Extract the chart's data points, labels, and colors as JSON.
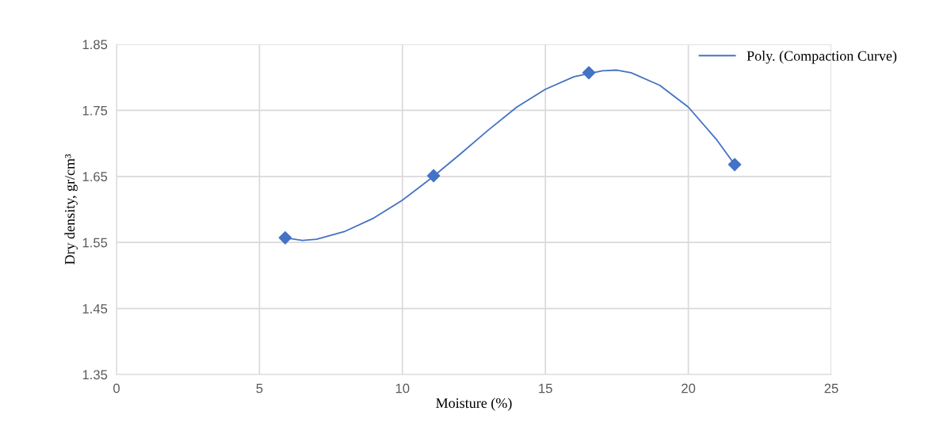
{
  "chart_data": {
    "type": "line",
    "xlabel": "Moisture (%)",
    "ylabel": "Dry density, gr/cm³",
    "xlim": [
      0,
      25
    ],
    "xticks": [
      0,
      5,
      10,
      15,
      20,
      25
    ],
    "ylim": [
      1.35,
      1.85
    ],
    "yticks": [
      1.35,
      1.45,
      1.55,
      1.65,
      1.75,
      1.85
    ],
    "grid": true,
    "legend": "top right",
    "series": [
      {
        "type": "scatter",
        "marker": "diamond",
        "color": "#4472c4",
        "x": [
          5.9,
          11.09,
          16.52,
          21.62
        ],
        "values": [
          1.557,
          1.651,
          1.807,
          1.668
        ]
      },
      {
        "name": "Poly. (Compaction Curve)",
        "color": "#4472c4",
        "x": [
          5.9,
          6.5,
          7,
          8,
          9,
          10,
          11,
          12,
          13,
          14,
          15,
          16,
          17,
          17.5,
          18,
          19,
          20,
          21,
          21.62
        ],
        "values": [
          1.557,
          1.553,
          1.555,
          1.567,
          1.587,
          1.614,
          1.647,
          1.683,
          1.72,
          1.755,
          1.782,
          1.801,
          1.81,
          1.811,
          1.807,
          1.788,
          1.755,
          1.705,
          1.668
        ]
      }
    ]
  }
}
